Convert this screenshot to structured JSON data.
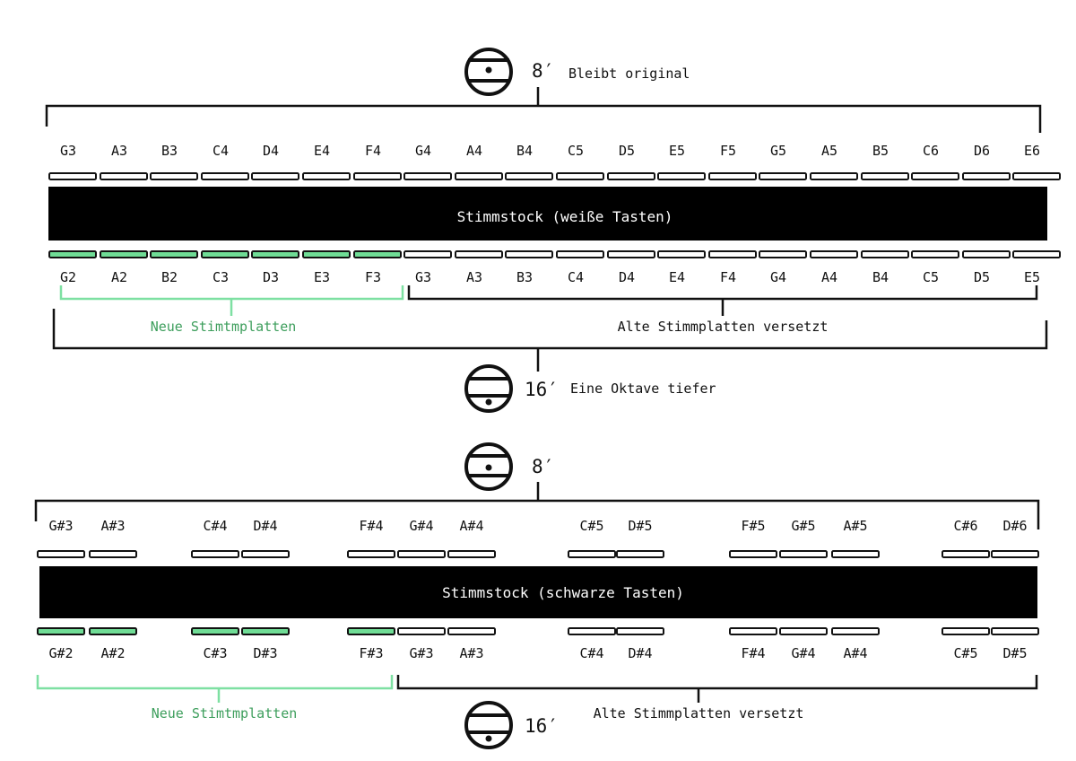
{
  "colors": {
    "ink": "#111111",
    "bar": "#000000",
    "new_plate": "#6fdc95",
    "new_text": "#3d9e5c",
    "new_bracket": "#7ee0a2",
    "plate_fill": "#ffffff"
  },
  "icons": {
    "register_symbol": "register-circle-icon"
  },
  "white_section": {
    "top_register": {
      "label": "8′",
      "note": "Bleibt original"
    },
    "top_notes": [
      "G3",
      "A3",
      "B3",
      "C4",
      "D4",
      "E4",
      "F4",
      "G4",
      "A4",
      "B4",
      "C5",
      "D5",
      "E5",
      "F5",
      "G5",
      "A5",
      "B5",
      "C6",
      "D6",
      "E6"
    ],
    "bar_label": "Stimmstock (weiße Tasten)",
    "bottom_notes": [
      "G2",
      "A2",
      "B2",
      "C3",
      "D3",
      "E3",
      "F3",
      "G3",
      "A3",
      "B3",
      "C4",
      "D4",
      "E4",
      "F4",
      "G4",
      "A4",
      "B4",
      "C5",
      "D5",
      "E5"
    ],
    "new_count": 7,
    "new_label": "Neue Stimtmplatten",
    "old_label": "Alte Stimmplatten versetzt",
    "bottom_register": {
      "label": "16′",
      "note": "Eine Oktave tiefer"
    }
  },
  "black_section": {
    "top_register": {
      "label": "8′"
    },
    "top_notes": [
      "G#3",
      "A#3",
      "C#4",
      "D#4",
      "F#4",
      "G#4",
      "A#4",
      "C#5",
      "D#5",
      "F#5",
      "G#5",
      "A#5",
      "C#6",
      "D#6"
    ],
    "bar_label": "Stimmstock (schwarze Tasten)",
    "bottom_notes": [
      "G#2",
      "A#2",
      "C#3",
      "D#3",
      "F#3",
      "G#3",
      "A#3",
      "C#4",
      "D#4",
      "F#4",
      "G#4",
      "A#4",
      "C#5",
      "D#5"
    ],
    "new_count": 5,
    "new_label": "Neue Stimtmplatten",
    "old_label": "Alte Stimmplatten versetzt",
    "bottom_register": {
      "label": "16′"
    }
  }
}
